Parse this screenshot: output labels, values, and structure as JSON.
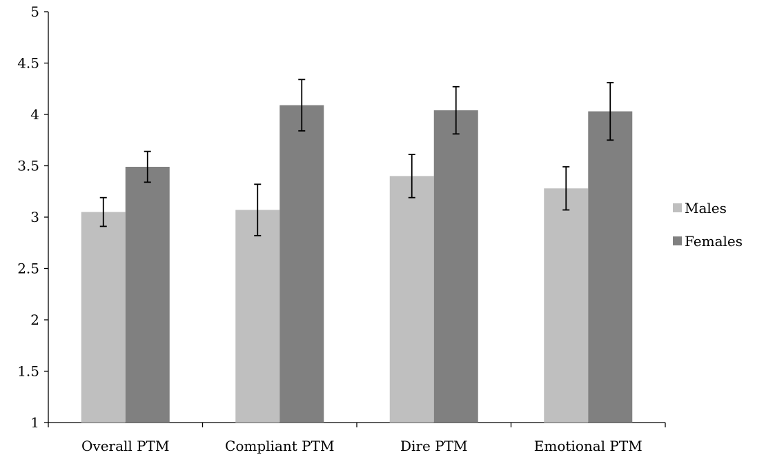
{
  "chart_data": {
    "type": "bar",
    "title": "",
    "xlabel": "",
    "ylabel": "",
    "categories": [
      "Overall PTM",
      "Compliant PTM",
      "Dire PTM",
      "Emotional PTM"
    ],
    "series": [
      {
        "name": "Males",
        "color": "#bfbfbf",
        "values": [
          3.05,
          3.07,
          3.4,
          3.28
        ],
        "error": [
          0.14,
          0.25,
          0.21,
          0.21
        ]
      },
      {
        "name": "Females",
        "color": "#808080",
        "values": [
          3.49,
          4.09,
          4.04,
          4.03
        ],
        "error": [
          0.15,
          0.25,
          0.23,
          0.28
        ]
      }
    ],
    "ylim": [
      1,
      5
    ],
    "yticks": [
      1,
      1.5,
      2,
      2.5,
      3,
      3.5,
      4,
      4.5,
      5
    ],
    "ytick_labels": [
      "1",
      "1.5",
      "2",
      "2.5",
      "3",
      "3.5",
      "4",
      "4.5",
      "5"
    ],
    "grid": false,
    "legend_position": "right"
  }
}
